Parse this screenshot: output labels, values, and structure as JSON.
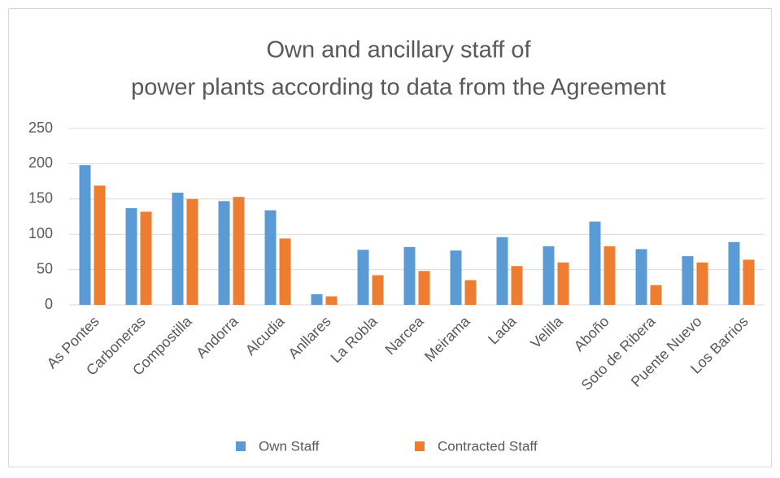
{
  "chart_data": {
    "type": "bar",
    "title": [
      "Own and ancillary staff of",
      "power plants according to data from the Agreement"
    ],
    "categories": [
      "As Pontes",
      "Carboneras",
      "Compostilla",
      "Andorra",
      "Alcudia",
      "Anllares",
      "La Robla",
      "Narcea",
      "Meirama",
      "Lada",
      "Velilla",
      "Aboño",
      "Soto de Ribera",
      "Puente Nuevo",
      "Los Barrios"
    ],
    "series": [
      {
        "name": "Own Staff",
        "color": "#5b9bd5",
        "values": [
          198,
          137,
          159,
          147,
          134,
          15,
          78,
          82,
          77,
          96,
          83,
          118,
          79,
          69,
          89
        ]
      },
      {
        "name": "Contracted Staff",
        "color": "#ed7d31",
        "values": [
          169,
          132,
          150,
          153,
          94,
          12,
          42,
          48,
          35,
          55,
          60,
          83,
          28,
          60,
          64
        ]
      }
    ],
    "ylim": [
      0,
      250
    ],
    "yticks": [
      0,
      50,
      100,
      150,
      200,
      250
    ],
    "grid": true,
    "legend": "bottom"
  }
}
